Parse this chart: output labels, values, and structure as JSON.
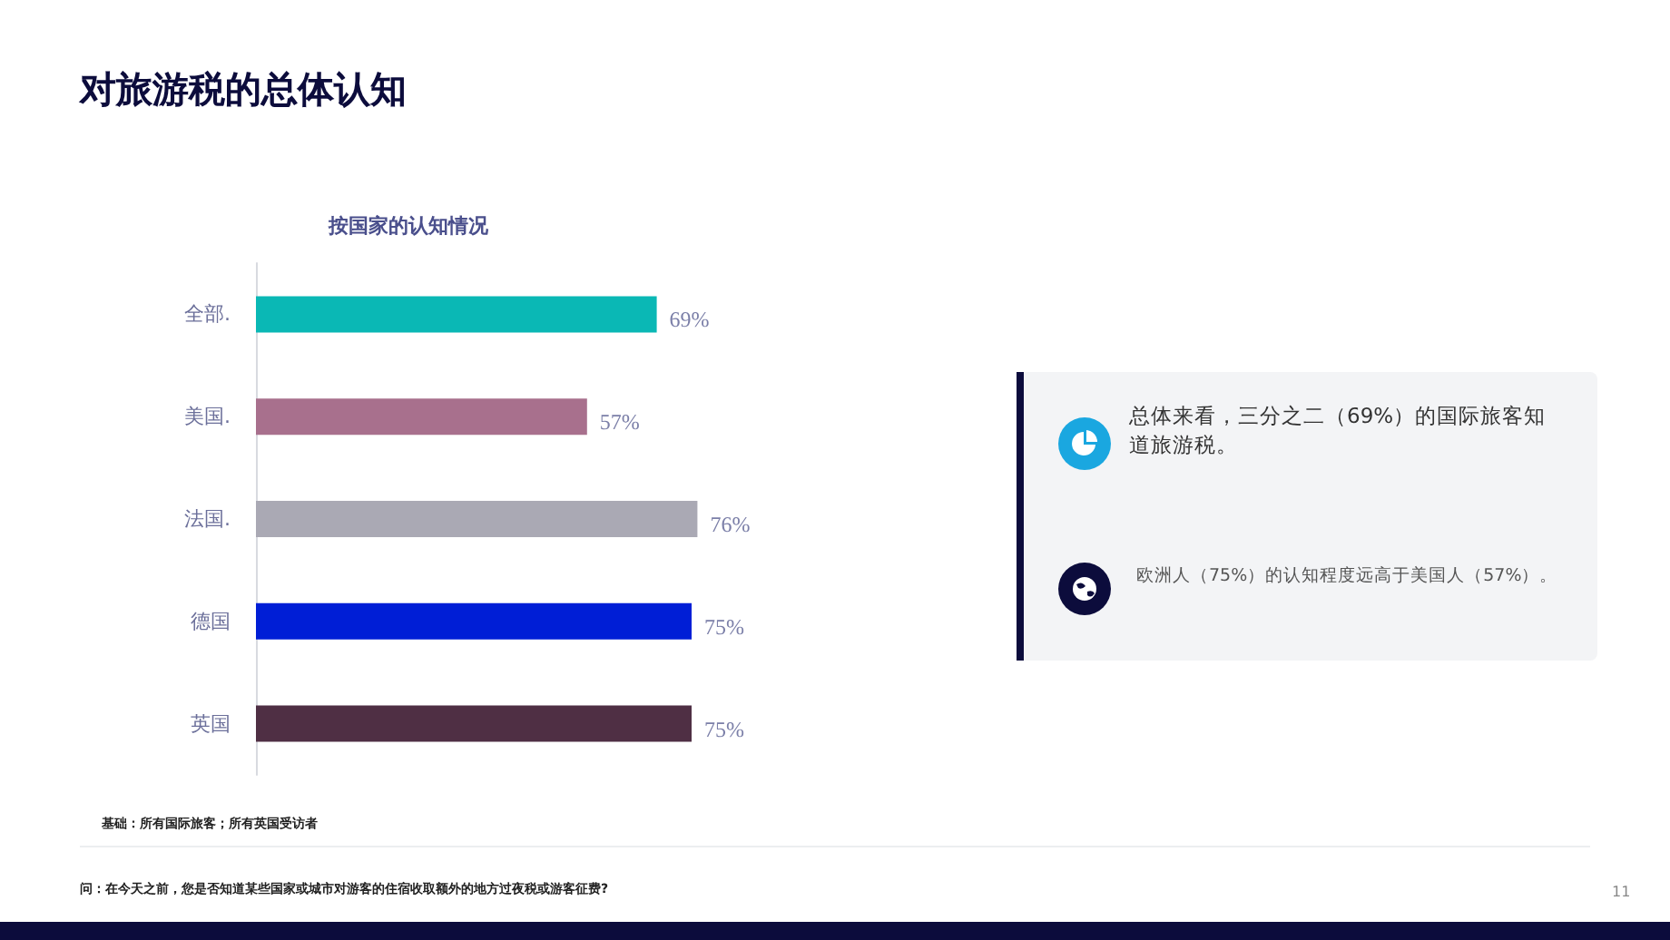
{
  "chart_data": {
    "type": "bar",
    "orientation": "horizontal",
    "title": "对旅游税的总体认知",
    "subtitle": "按国家的认知情况",
    "categories": [
      "全部.",
      "美国.",
      "法国.",
      "德国",
      "英国"
    ],
    "values": [
      69,
      57,
      76,
      75,
      75
    ],
    "value_labels": [
      "69%",
      "57%",
      "76%",
      "75%",
      "75%"
    ],
    "colors": [
      "#0ab8b5",
      "#a8708d",
      "#aaa9b4",
      "#001ed6",
      "#4f2f44"
    ],
    "tick_labels": "y",
    "annotations": [
      " 总体来看，三分之二（69%）的国际旅客知道旅游税。",
      "欧洲人（75%）的认知程度远高于美国人（57%）。",
      "基础：所有国际旅客；所有英国受访者",
      "问：在今天之前，您是否知道某些国家或城市对游客的住宿收取额外的地方过夜税或游客征费?",
      "11"
    ]
  }
}
